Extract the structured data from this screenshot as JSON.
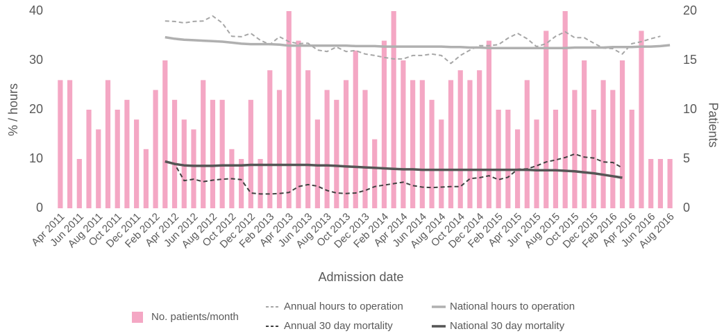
{
  "chart_data": {
    "type": "bar",
    "x_label": "Admission date",
    "y_label": "% / hours",
    "y2_label": "Patients",
    "categories": [
      "Apr 2011",
      null,
      "Jun 2011",
      null,
      "Aug 2011",
      null,
      "Oct 2011",
      null,
      "Dec 2011",
      null,
      "Feb 2012",
      null,
      "Apr 2012",
      null,
      "Jun 2012",
      null,
      "Aug 2012",
      null,
      "Oct 2012",
      null,
      "Dec 2012",
      null,
      "Feb 2013",
      null,
      "Apr 2013",
      null,
      "Jun 2013",
      null,
      "Aug 2013",
      null,
      "Oct 2013",
      null,
      "Dec 2013",
      null,
      "Feb 2014",
      null,
      "Apr 2014",
      null,
      "Jun 2014",
      null,
      "Aug 2014",
      null,
      "Oct 2014",
      null,
      "Dec 2014",
      null,
      "Feb 2015",
      null,
      "Apr 2015",
      null,
      "Jun 2015",
      null,
      "Aug 2015",
      null,
      "Oct 2015",
      null,
      "Dec 2015",
      null,
      "Feb 2016",
      null,
      "Apr 2016",
      null,
      "Jun 2016",
      null,
      "Aug 2016"
    ],
    "ylim": [
      0,
      40
    ],
    "yticks": [
      0,
      10,
      20,
      30,
      40
    ],
    "y2lim": [
      0,
      20
    ],
    "y2ticks": [
      0,
      5,
      10,
      15,
      20
    ],
    "grid": false,
    "series": [
      {
        "name": "No. patients/month",
        "type": "bar",
        "axis": "y2",
        "color": "#f4a7c4",
        "values": [
          13,
          13,
          5,
          10,
          8,
          13,
          10,
          11,
          9,
          6,
          12,
          15,
          11,
          9,
          8,
          13,
          11,
          11,
          6,
          5,
          11,
          5,
          14,
          12,
          20,
          17,
          14,
          9,
          12,
          11,
          13,
          16,
          12,
          7,
          17,
          20,
          15,
          13,
          13,
          11,
          9,
          13,
          14,
          13,
          14,
          17,
          10,
          10,
          8,
          13,
          9,
          18,
          10,
          20,
          12,
          15,
          10,
          13,
          12,
          15,
          10,
          18,
          5,
          5,
          5
        ]
      },
      {
        "name": "Annual hours to operation",
        "type": "line",
        "dashed": true,
        "width": 2,
        "color": "#a6a6a6",
        "values": [
          null,
          null,
          null,
          null,
          null,
          null,
          null,
          null,
          null,
          null,
          null,
          38.0,
          37.9,
          37.6,
          37.9,
          38.0,
          39.0,
          37.6,
          34.9,
          34.8,
          35.5,
          34.1,
          33.2,
          34.8,
          33.8,
          33.4,
          33.5,
          32.1,
          31.8,
          32.7,
          31.8,
          32.0,
          31.3,
          31.0,
          30.6,
          30.3,
          30.3,
          31.0,
          31.0,
          31.3,
          31.0,
          29.4,
          31.0,
          32.1,
          33.0,
          33.0,
          33.2,
          34.5,
          35.5,
          34.4,
          32.8,
          33.4,
          34.9,
          35.8,
          34.6,
          34.6,
          33.5,
          32.5,
          32.4,
          31.3,
          33.4,
          33.8,
          34.4,
          34.9,
          null
        ]
      },
      {
        "name": "National hours to operation",
        "type": "line",
        "dashed": false,
        "width": 3.5,
        "color": "#b0b0b0",
        "values": [
          null,
          null,
          null,
          null,
          null,
          null,
          null,
          null,
          null,
          null,
          null,
          34.7,
          34.4,
          34.2,
          34.1,
          34.0,
          33.9,
          33.8,
          33.6,
          33.4,
          33.3,
          33.3,
          33.3,
          33.2,
          33.0,
          33.0,
          33.0,
          33.0,
          33.0,
          33.0,
          33.0,
          32.9,
          32.9,
          32.9,
          32.8,
          32.8,
          32.8,
          32.8,
          32.8,
          32.8,
          32.8,
          32.7,
          32.7,
          32.6,
          32.6,
          32.5,
          32.5,
          32.5,
          32.5,
          32.5,
          32.5,
          32.5,
          32.5,
          32.5,
          32.6,
          32.6,
          32.6,
          32.6,
          32.7,
          32.7,
          32.7,
          32.8,
          32.8,
          32.9,
          33.1
        ]
      },
      {
        "name": "Annual 30 day mortality",
        "type": "line",
        "dashed": true,
        "width": 2,
        "color": "#404040",
        "values": [
          null,
          null,
          null,
          null,
          null,
          null,
          null,
          null,
          null,
          null,
          null,
          9.4,
          9.0,
          5.6,
          5.9,
          5.4,
          5.7,
          5.9,
          6.0,
          5.8,
          3.1,
          2.9,
          2.9,
          3.0,
          3.2,
          4.4,
          4.8,
          4.5,
          3.6,
          3.1,
          3.0,
          3.1,
          3.6,
          4.4,
          4.7,
          5.0,
          5.3,
          4.6,
          4.3,
          4.2,
          4.3,
          4.4,
          4.4,
          6.0,
          6.2,
          6.6,
          5.8,
          6.3,
          7.9,
          8.0,
          8.6,
          9.4,
          9.8,
          10.3,
          11.0,
          10.4,
          10.2,
          9.4,
          9.3,
          8.2,
          null,
          null,
          null,
          null,
          null
        ]
      },
      {
        "name": "National 30 day mortality",
        "type": "line",
        "dashed": false,
        "width": 3.5,
        "color": "#555555",
        "values": [
          null,
          null,
          null,
          null,
          null,
          null,
          null,
          null,
          null,
          null,
          null,
          9.5,
          9.0,
          8.7,
          8.6,
          8.6,
          8.6,
          8.7,
          8.7,
          8.7,
          8.8,
          8.8,
          8.8,
          8.8,
          8.8,
          8.8,
          8.8,
          8.7,
          8.7,
          8.6,
          8.5,
          8.4,
          8.3,
          8.2,
          8.1,
          8.0,
          7.9,
          7.9,
          7.8,
          7.8,
          7.8,
          7.8,
          7.8,
          7.8,
          7.8,
          7.8,
          7.8,
          7.8,
          7.8,
          7.8,
          7.7,
          7.7,
          7.7,
          7.6,
          7.5,
          7.3,
          7.1,
          6.8,
          6.5,
          6.2,
          null,
          null,
          null,
          null,
          null
        ]
      }
    ]
  }
}
